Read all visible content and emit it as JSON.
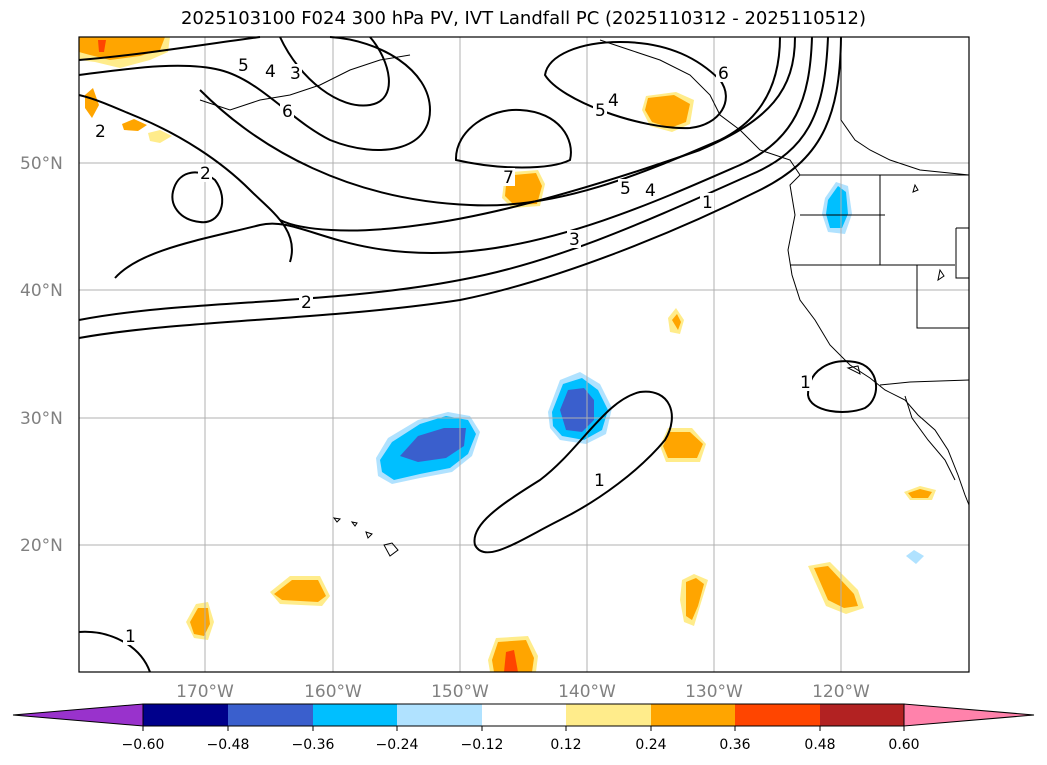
{
  "title": "2025103100 F024 300 hPa PV, IVT Landfall PC (2025110312 - 2025110512)",
  "map": {
    "lat_labels": [
      "50°N",
      "40°N",
      "30°N",
      "20°N"
    ],
    "lon_labels": [
      "170°W",
      "160°W",
      "150°W",
      "140°W",
      "130°W",
      "120°W"
    ],
    "pv_contour_labels": [
      "5",
      "4",
      "3",
      "6",
      "2",
      "2",
      "7",
      "5",
      "4",
      "6",
      "5",
      "4",
      "1",
      "3",
      "2",
      "1",
      "1",
      "1"
    ]
  },
  "colorbar": {
    "levels": [
      "−0.60",
      "−0.48",
      "−0.36",
      "−0.24",
      "−0.12",
      "0.12",
      "0.24",
      "0.36",
      "0.48",
      "0.60"
    ],
    "colors": [
      "#9932cc",
      "#00008b",
      "#3a5fcd",
      "#00bfff",
      "#b0e2ff",
      "#ffffff",
      "#ffec8b",
      "#ffa500",
      "#ff4500",
      "#b22222",
      "#ff82ab"
    ]
  }
}
